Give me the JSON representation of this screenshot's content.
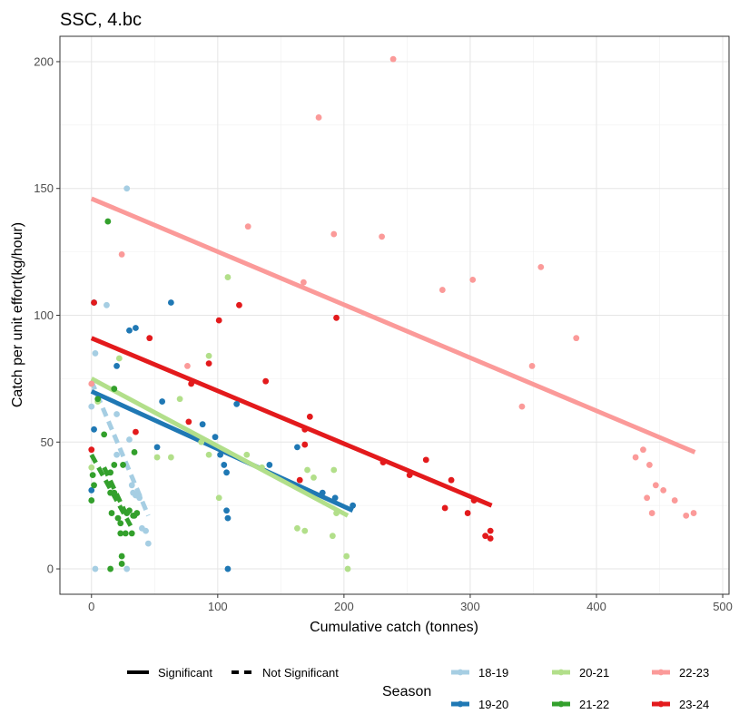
{
  "chart_data": {
    "type": "scatter",
    "title": "SSC, 4.bc",
    "xlabel": "Cumulative catch (tonnes)",
    "ylabel": "Catch per unit effort(kg/hour)",
    "xlim": [
      -25,
      505
    ],
    "ylim": [
      -10,
      210
    ],
    "xticks": [
      0,
      100,
      200,
      300,
      400,
      500
    ],
    "yticks": [
      0,
      50,
      100,
      150,
      200
    ],
    "grid": true,
    "legend_position": "bottom",
    "legend": {
      "linetype_items": [
        {
          "label": "Significant",
          "style": "solid"
        },
        {
          "label": "Not Significant",
          "style": "dashed"
        }
      ],
      "season_title": "Season"
    },
    "series": [
      {
        "name": "18-19",
        "color": "#a6cee3",
        "points": [
          [
            0,
            64
          ],
          [
            3,
            0
          ],
          [
            3,
            85
          ],
          [
            12,
            104
          ],
          [
            20,
            61
          ],
          [
            20,
            45
          ],
          [
            28,
            150
          ],
          [
            28,
            0
          ],
          [
            30,
            51
          ],
          [
            32,
            33
          ],
          [
            33,
            30
          ],
          [
            35,
            29
          ],
          [
            38,
            28
          ],
          [
            40,
            16
          ],
          [
            43,
            15
          ],
          [
            45,
            10
          ]
        ],
        "fit": {
          "x": [
            0,
            45
          ],
          "y": [
            74,
            21
          ],
          "significant": false
        }
      },
      {
        "name": "19-20",
        "color": "#1f78b4",
        "points": [
          [
            0,
            31
          ],
          [
            2,
            55
          ],
          [
            2,
            105
          ],
          [
            20,
            80
          ],
          [
            30,
            94
          ],
          [
            35,
            95
          ],
          [
            52,
            48
          ],
          [
            56,
            66
          ],
          [
            63,
            105
          ],
          [
            88,
            57
          ],
          [
            98,
            52
          ],
          [
            102,
            45
          ],
          [
            105,
            41
          ],
          [
            107,
            23
          ],
          [
            107,
            38
          ],
          [
            108,
            20
          ],
          [
            108,
            0
          ],
          [
            115,
            65
          ],
          [
            141,
            41
          ],
          [
            163,
            48
          ],
          [
            183,
            30
          ],
          [
            193,
            28
          ],
          [
            207,
            25
          ]
        ],
        "fit": {
          "x": [
            0,
            207
          ],
          "y": [
            70,
            23
          ],
          "significant": true
        }
      },
      {
        "name": "20-21",
        "color": "#b2df8a",
        "points": [
          [
            0,
            40
          ],
          [
            5,
            66
          ],
          [
            22,
            83
          ],
          [
            52,
            44
          ],
          [
            63,
            44
          ],
          [
            70,
            67
          ],
          [
            87,
            50
          ],
          [
            93,
            84
          ],
          [
            93,
            45
          ],
          [
            101,
            28
          ],
          [
            108,
            115
          ],
          [
            123,
            45
          ],
          [
            135,
            40
          ],
          [
            163,
            16
          ],
          [
            169,
            15
          ],
          [
            171,
            39
          ],
          [
            176,
            36
          ],
          [
            191,
            13
          ],
          [
            192,
            39
          ],
          [
            194,
            22
          ],
          [
            202,
            5
          ],
          [
            203,
            0
          ]
        ],
        "fit": {
          "x": [
            0,
            203
          ],
          "y": [
            75,
            21
          ],
          "significant": true
        }
      },
      {
        "name": "21-22",
        "color": "#33a02c",
        "points": [
          [
            0,
            27
          ],
          [
            1,
            37
          ],
          [
            2,
            33
          ],
          [
            5,
            67
          ],
          [
            10,
            53
          ],
          [
            13,
            137
          ],
          [
            15,
            0
          ],
          [
            15,
            38
          ],
          [
            15,
            30
          ],
          [
            16,
            22
          ],
          [
            18,
            30
          ],
          [
            18,
            41
          ],
          [
            18,
            71
          ],
          [
            21,
            20
          ],
          [
            23,
            18
          ],
          [
            23,
            14
          ],
          [
            24,
            5
          ],
          [
            24,
            2
          ],
          [
            25,
            41
          ],
          [
            27,
            14
          ],
          [
            28,
            22
          ],
          [
            30,
            23
          ],
          [
            32,
            14
          ],
          [
            33,
            21
          ],
          [
            34,
            21
          ],
          [
            34,
            46
          ],
          [
            36,
            22
          ]
        ],
        "fit": {
          "x": [
            0,
            31
          ],
          "y": [
            45,
            17
          ],
          "significant": false
        },
        "fit2": {
          "x": [
            10,
            27
          ],
          "y": [
            40,
            22
          ],
          "significant": false
        }
      },
      {
        "name": "22-23",
        "color": "#fb9a99",
        "points": [
          [
            0,
            73
          ],
          [
            24,
            124
          ],
          [
            76,
            80
          ],
          [
            124,
            135
          ],
          [
            168,
            113
          ],
          [
            180,
            178
          ],
          [
            192,
            132
          ],
          [
            230,
            131
          ],
          [
            239,
            201
          ],
          [
            278,
            110
          ],
          [
            302,
            114
          ],
          [
            341,
            64
          ],
          [
            349,
            80
          ],
          [
            356,
            119
          ],
          [
            384,
            91
          ],
          [
            431,
            44
          ],
          [
            437,
            47
          ],
          [
            440,
            28
          ],
          [
            442,
            41
          ],
          [
            444,
            22
          ],
          [
            447,
            33
          ],
          [
            453,
            31
          ],
          [
            462,
            27
          ],
          [
            471,
            21
          ],
          [
            477,
            22
          ]
        ],
        "fit": {
          "x": [
            0,
            478
          ],
          "y": [
            146,
            46
          ],
          "significant": true
        }
      },
      {
        "name": "23-24",
        "color": "#e31a1c",
        "points": [
          [
            0,
            47
          ],
          [
            2,
            105
          ],
          [
            35,
            54
          ],
          [
            46,
            91
          ],
          [
            77,
            58
          ],
          [
            79,
            73
          ],
          [
            93,
            81
          ],
          [
            101,
            98
          ],
          [
            117,
            104
          ],
          [
            138,
            74
          ],
          [
            165,
            35
          ],
          [
            169,
            49
          ],
          [
            169,
            55
          ],
          [
            173,
            60
          ],
          [
            194,
            99
          ],
          [
            231,
            42
          ],
          [
            252,
            37
          ],
          [
            265,
            43
          ],
          [
            280,
            24
          ],
          [
            285,
            35
          ],
          [
            298,
            22
          ],
          [
            303,
            27
          ],
          [
            312,
            13
          ],
          [
            316,
            15
          ],
          [
            316,
            12
          ]
        ],
        "fit": {
          "x": [
            0,
            317
          ],
          "y": [
            91,
            25
          ],
          "significant": true
        }
      }
    ]
  }
}
